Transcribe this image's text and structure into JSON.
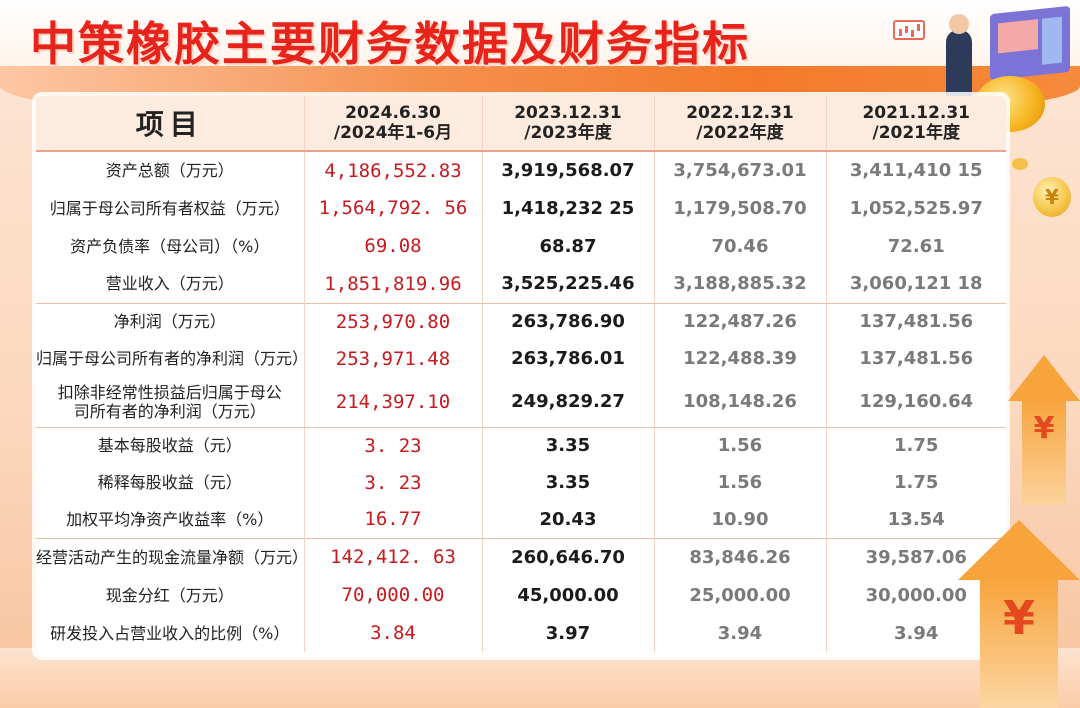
{
  "title": "中策橡胶主要财务数据及财务指标",
  "decor": {
    "yen_symbol": "¥"
  },
  "table": {
    "header": {
      "item": "项目",
      "periods": [
        {
          "line1": "2024.6.30",
          "line2": "/2024年1-6月"
        },
        {
          "line1": "2023.12.31",
          "line2": "/2023年度"
        },
        {
          "line1": "2022.12.31",
          "line2": "/2022年度"
        },
        {
          "line1": "2021.12.31",
          "line2": "/2021年度"
        }
      ]
    },
    "rows": [
      {
        "label": "资产总额（万元）",
        "values": [
          "4,186,552.83",
          "3,919,568.07",
          "3,754,673.01",
          "3,411,410 15"
        ]
      },
      {
        "label": "归属于母公司所有者权益（万元）",
        "values": [
          "1,564,792. 56",
          "1,418,232 25",
          "1,179,508.70",
          "1,052,525.97"
        ]
      },
      {
        "label": "资产负债率（母公司）（%）",
        "values": [
          "69.08",
          "68.87",
          "70.46",
          "72.61"
        ]
      },
      {
        "label": "营业收入（万元）",
        "values": [
          "1,851,819.96",
          "3,525,225.46",
          "3,188,885.32",
          "3,060,121 18"
        ]
      },
      {
        "label": "净利润（万元）",
        "values": [
          "253,970.80",
          "263,786.90",
          "122,487.26",
          "137,481.56"
        ]
      },
      {
        "label": "归属于母公司所有者的净利润（万元）",
        "values": [
          "253,971.48",
          "263,786.01",
          "122,488.39",
          "137,481.56"
        ]
      },
      {
        "label": "扣除非经常性损益后归属于母公司所有者的净利润（万元）",
        "values": [
          "214,397.10",
          "249,829.27",
          "108,148.26",
          "129,160.64"
        ]
      },
      {
        "label": "基本每股收益（元）",
        "values": [
          "3. 23",
          "3.35",
          "1.56",
          "1.75"
        ]
      },
      {
        "label": "稀释每股收益（元）",
        "values": [
          "3. 23",
          "3.35",
          "1.56",
          "1.75"
        ]
      },
      {
        "label": "加权平均净资产收益率（%）",
        "values": [
          "16.77",
          "20.43",
          "10.90",
          "13.54"
        ]
      },
      {
        "label": "经营活动产生的现金流量净额（万元）",
        "values": [
          "142,412. 63",
          "260,646.70",
          "83,846.26",
          "39,587.06"
        ]
      },
      {
        "label": "现金分红（万元）",
        "values": [
          "70,000.00",
          "45,000.00",
          "25,000.00",
          "30,000.00"
        ]
      },
      {
        "label": "研发投入占营业收入的比例（%）",
        "values": [
          "3.84",
          "3.97",
          "3.94",
          "3.94"
        ]
      }
    ]
  }
}
